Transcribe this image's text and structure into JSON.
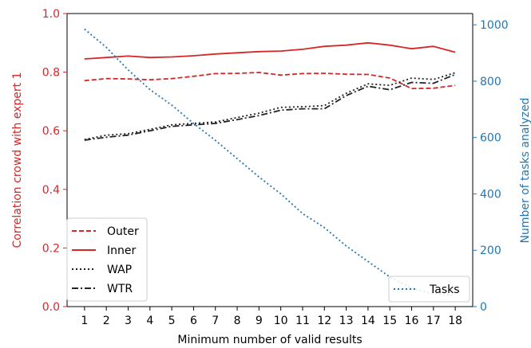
{
  "chart_data": {
    "type": "line",
    "xlabel": "Minimum number of valid results",
    "ylabel_left": "Correlation crowd with expert 1",
    "ylabel_right": "Number of tasks analyzed",
    "x": [
      1,
      2,
      3,
      4,
      5,
      6,
      7,
      8,
      9,
      10,
      11,
      12,
      13,
      14,
      15,
      16,
      17,
      18
    ],
    "ylim_left": [
      0,
      1.0
    ],
    "ylim_right": [
      0,
      1040
    ],
    "yticks_left": [
      "0.0",
      "0.2",
      "0.4",
      "0.6",
      "0.8",
      "1.0"
    ],
    "yticks_left_values": [
      0,
      0.2,
      0.4,
      0.6,
      0.8,
      1.0
    ],
    "yticks_right": [
      "0",
      "200",
      "400",
      "600",
      "800",
      "1000"
    ],
    "yticks_right_values": [
      0,
      200,
      400,
      600,
      800,
      1000
    ],
    "colors": {
      "left_axis": "#d62728",
      "right_axis": "#1f77b4",
      "outer": "#d62728",
      "inner": "#d62728",
      "wap": "#222222",
      "wtr": "#222222",
      "tasks": "#1f77b4"
    },
    "series": [
      {
        "name": "Outer",
        "axis": "left",
        "style": "dashed",
        "values": [
          0.771,
          0.778,
          0.777,
          0.774,
          0.778,
          0.786,
          0.795,
          0.796,
          0.799,
          0.79,
          0.795,
          0.796,
          0.793,
          0.792,
          0.78,
          0.744,
          0.745,
          0.755
        ]
      },
      {
        "name": "Inner",
        "axis": "left",
        "style": "solid",
        "values": [
          0.845,
          0.85,
          0.855,
          0.85,
          0.852,
          0.856,
          0.862,
          0.866,
          0.87,
          0.872,
          0.878,
          0.888,
          0.892,
          0.9,
          0.892,
          0.88,
          0.888,
          0.868
        ]
      },
      {
        "name": "WAP",
        "axis": "left",
        "style": "dotted",
        "values": [
          0.57,
          0.585,
          0.59,
          0.605,
          0.62,
          0.625,
          0.63,
          0.645,
          0.66,
          0.68,
          0.682,
          0.686,
          0.728,
          0.76,
          0.755,
          0.78,
          0.775,
          0.798
        ]
      },
      {
        "name": "WTR",
        "axis": "left",
        "style": "dashdot",
        "values": [
          0.568,
          0.578,
          0.585,
          0.6,
          0.615,
          0.62,
          0.625,
          0.638,
          0.652,
          0.67,
          0.675,
          0.675,
          0.72,
          0.752,
          0.74,
          0.765,
          0.762,
          0.792
        ]
      },
      {
        "name": "Tasks",
        "axis": "right",
        "style": "dotted",
        "values": [
          985,
          920,
          840,
          770,
          715,
          650,
          590,
          525,
          460,
          400,
          330,
          280,
          215,
          160,
          105,
          65,
          45,
          40
        ]
      }
    ],
    "legend_left_entries": [
      "Outer",
      "Inner",
      "WAP",
      "WTR"
    ],
    "legend_right_entries": [
      "Tasks"
    ],
    "legend_left_position": "lower-left",
    "legend_right_position": "lower-right"
  }
}
